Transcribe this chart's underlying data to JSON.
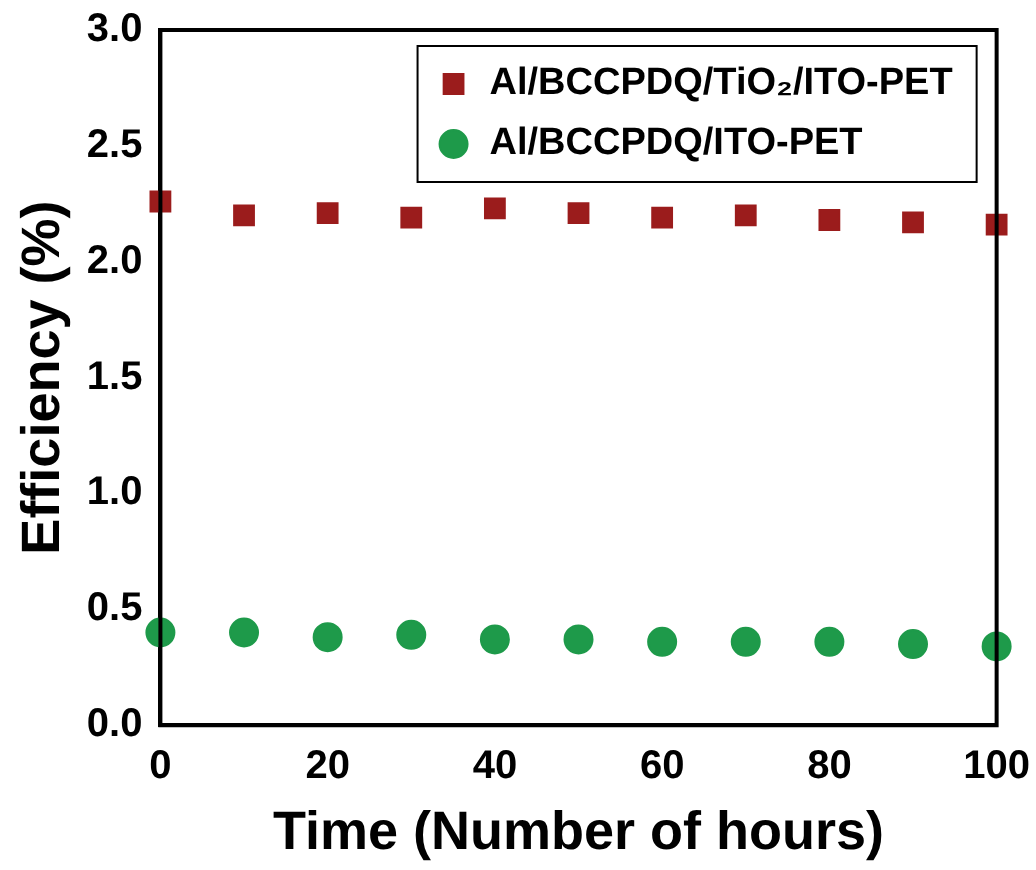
{
  "chart_data": {
    "type": "scatter",
    "xlabel": "Time (Number of hours)",
    "ylabel": "Efficiency (%)",
    "x": [
      0,
      10,
      20,
      30,
      40,
      50,
      60,
      70,
      80,
      90,
      100
    ],
    "series": [
      {
        "name": "Al/BCCPDQ/TiO₂/ITO-PET",
        "color": "#9b1c1c",
        "marker": "square",
        "values": [
          2.26,
          2.2,
          2.21,
          2.19,
          2.23,
          2.21,
          2.19,
          2.2,
          2.18,
          2.17,
          2.16
        ]
      },
      {
        "name": "Al/BCCPDQ/ITO-PET",
        "color": "#1e9a4a",
        "marker": "circle",
        "values": [
          0.4,
          0.4,
          0.38,
          0.39,
          0.37,
          0.37,
          0.36,
          0.36,
          0.36,
          0.35,
          0.34
        ]
      }
    ],
    "xlim": [
      0,
      100
    ],
    "xticks": [
      0,
      20,
      40,
      60,
      80,
      100
    ],
    "ylim": [
      0,
      3
    ],
    "yticks": [
      {
        "value": 0,
        "label": "0.0"
      },
      0.5,
      {
        "value": 1,
        "label": "1.0"
      },
      1.5,
      {
        "value": 2,
        "label": "2.0"
      },
      2.5,
      {
        "value": 3,
        "label": "3.0"
      }
    ],
    "legend": "top right",
    "grid": false
  }
}
